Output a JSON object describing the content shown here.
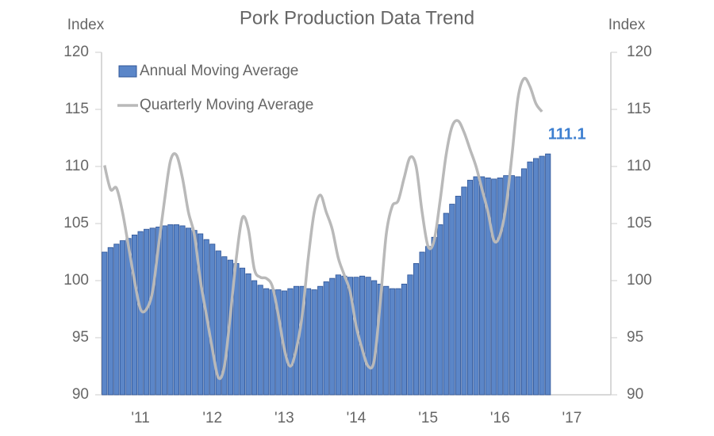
{
  "chart_data": {
    "type": "combo",
    "title": "Pork Production Data Trend",
    "y_label": "Index",
    "y2_label": "Index",
    "categories": [
      null,
      null,
      null,
      null,
      null,
      null,
      "'11",
      null,
      null,
      null,
      null,
      null,
      null,
      null,
      null,
      null,
      null,
      null,
      "'12",
      null,
      null,
      null,
      null,
      null,
      null,
      null,
      null,
      null,
      null,
      null,
      "'13",
      null,
      null,
      null,
      null,
      null,
      null,
      null,
      null,
      null,
      null,
      null,
      "'14",
      null,
      null,
      null,
      null,
      null,
      null,
      null,
      null,
      null,
      null,
      null,
      "'15",
      null,
      null,
      null,
      null,
      null,
      null,
      null,
      null,
      null,
      null,
      null,
      "'16",
      null,
      null,
      null,
      null,
      null,
      null,
      null,
      null,
      null,
      null,
      null,
      "'17",
      null,
      null,
      null,
      null,
      null,
      null
    ],
    "series": [
      {
        "name": "Annual Moving Average",
        "type": "bar",
        "color": "#5b86c8",
        "edge": "#2f5597",
        "values": [
          102.5,
          102.9,
          103.2,
          103.5,
          103.7,
          104.0,
          104.3,
          104.5,
          104.6,
          104.7,
          104.8,
          104.9,
          104.9,
          104.8,
          104.6,
          104.4,
          104.1,
          103.6,
          103.2,
          102.6,
          102.1,
          101.8,
          101.5,
          101.1,
          100.6,
          100.0,
          99.6,
          99.3,
          99.2,
          99.2,
          99.1,
          99.3,
          99.5,
          99.5,
          99.3,
          99.2,
          99.5,
          99.9,
          100.2,
          100.5,
          100.4,
          100.3,
          100.3,
          100.4,
          100.3,
          100.0,
          99.7,
          99.5,
          99.3,
          99.3,
          99.7,
          100.5,
          101.5,
          102.5,
          103.0,
          103.8,
          104.9,
          105.9,
          106.7,
          107.4,
          108.2,
          108.8,
          109.1,
          109.1,
          109.0,
          108.9,
          109.0,
          109.2,
          109.2,
          109.1,
          109.8,
          110.4,
          110.7,
          110.9,
          111.1,
          null,
          null,
          null,
          null,
          null,
          null,
          null,
          null,
          null,
          null
        ]
      },
      {
        "name": "Quarterly Moving Average",
        "type": "line",
        "color": "#b9b9b9",
        "values": [
          110.1,
          108.0,
          108.1,
          106.0,
          103.0,
          100.0,
          97.5,
          97.5,
          99.0,
          103.0,
          107.0,
          110.5,
          111.0,
          109.0,
          106.0,
          104.0,
          100.0,
          97.0,
          94.0,
          91.5,
          92.5,
          97.0,
          102.0,
          105.5,
          104.5,
          101.0,
          100.3,
          100.2,
          99.5,
          97.0,
          94.0,
          92.5,
          94.0,
          97.0,
          102.0,
          106.0,
          107.5,
          106.0,
          104.5,
          102.0,
          100.5,
          99.0,
          96.0,
          94.0,
          92.5,
          93.0,
          98.0,
          104.0,
          106.5,
          107.0,
          109.0,
          110.8,
          110.0,
          106.0,
          103.0,
          103.5,
          107.0,
          111.0,
          113.5,
          114.0,
          113.0,
          111.5,
          110.0,
          108.0,
          106.0,
          103.5,
          104.0,
          106.5,
          111.0,
          116.0,
          117.7,
          117.0,
          115.5,
          114.8,
          null,
          null,
          null,
          null,
          null,
          null,
          null,
          null,
          null,
          null,
          null
        ]
      }
    ],
    "ylim": [
      90,
      120
    ],
    "yticks": [
      90,
      95,
      100,
      105,
      110,
      115,
      120
    ],
    "y2lim": [
      90,
      120
    ],
    "y2ticks": [
      90,
      95,
      100,
      105,
      110,
      115,
      120
    ],
    "grid": false,
    "legend": "top-left"
  }
}
